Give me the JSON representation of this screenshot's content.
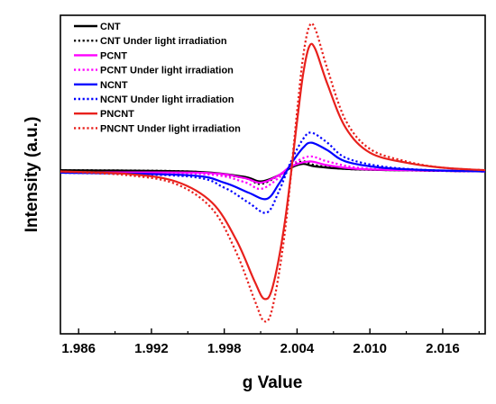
{
  "chart_data": {
    "type": "line",
    "title": "",
    "xlabel": "g Value",
    "ylabel": "Intensity (a.u.)",
    "xlim": [
      1.9845,
      2.0195
    ],
    "ylim": [
      -130,
      125
    ],
    "x_ticks": [
      1.986,
      1.992,
      1.998,
      2.004,
      2.01,
      2.016
    ],
    "x_tick_labels": [
      "1.986",
      "1.992",
      "1.998",
      "2.004",
      "2.010",
      "2.016"
    ],
    "y_ticks_shown": false,
    "grid": false,
    "legend_placement": "top-left",
    "series": [
      {
        "name": "CNT",
        "color": "#000000",
        "dash": "solid",
        "points": [
          [
            1.9845,
            1
          ],
          [
            1.995,
            0
          ],
          [
            1.9995,
            -4
          ],
          [
            2.001,
            -8
          ],
          [
            2.0025,
            -3
          ],
          [
            2.0035,
            3
          ],
          [
            2.0045,
            6
          ],
          [
            2.0055,
            4
          ],
          [
            2.008,
            2
          ],
          [
            2.012,
            1
          ],
          [
            2.0195,
            0
          ]
        ]
      },
      {
        "name": "CNT Under light irradiation",
        "color": "#000000",
        "dash": "dotted",
        "points": [
          [
            1.9845,
            1
          ],
          [
            1.995,
            0
          ],
          [
            1.9995,
            -5
          ],
          [
            2.001,
            -10
          ],
          [
            2.0025,
            -3
          ],
          [
            2.0035,
            4
          ],
          [
            2.0045,
            8
          ],
          [
            2.0055,
            5
          ],
          [
            2.008,
            2
          ],
          [
            2.012,
            1
          ],
          [
            2.0195,
            0
          ]
        ]
      },
      {
        "name": "PCNT",
        "color": "#ff00ff",
        "dash": "solid",
        "points": [
          [
            1.9845,
            -1
          ],
          [
            1.996,
            -1
          ],
          [
            1.9995,
            -5
          ],
          [
            2.001,
            -9
          ],
          [
            2.0025,
            -3
          ],
          [
            2.0035,
            4
          ],
          [
            2.005,
            8
          ],
          [
            2.0065,
            5
          ],
          [
            2.009,
            2
          ],
          [
            2.013,
            1
          ],
          [
            2.0195,
            0
          ]
        ]
      },
      {
        "name": "PCNT Under light irradiation",
        "color": "#ff00ff",
        "dash": "dotted",
        "points": [
          [
            1.9845,
            -1
          ],
          [
            1.996,
            -2
          ],
          [
            1.9995,
            -8
          ],
          [
            2.001,
            -14
          ],
          [
            2.0025,
            -5
          ],
          [
            2.0035,
            5
          ],
          [
            2.005,
            12
          ],
          [
            2.0065,
            8
          ],
          [
            2.009,
            3
          ],
          [
            2.013,
            1
          ],
          [
            2.0195,
            0
          ]
        ]
      },
      {
        "name": "NCNT",
        "color": "#0000ff",
        "dash": "solid",
        "points": [
          [
            1.9845,
            -1
          ],
          [
            1.995,
            -3
          ],
          [
            1.998,
            -9
          ],
          [
            2.0,
            -17
          ],
          [
            2.0015,
            -22
          ],
          [
            2.0025,
            -10
          ],
          [
            2.0035,
            6
          ],
          [
            2.0045,
            19
          ],
          [
            2.0052,
            23
          ],
          [
            2.0065,
            17
          ],
          [
            2.008,
            8
          ],
          [
            2.011,
            3
          ],
          [
            2.015,
            1
          ],
          [
            2.0195,
            0
          ]
        ]
      },
      {
        "name": "NCNT Under light irradiation",
        "color": "#0000ff",
        "dash": "dotted",
        "points": [
          [
            1.9845,
            -1
          ],
          [
            1.995,
            -4
          ],
          [
            1.998,
            -13
          ],
          [
            2.0,
            -25
          ],
          [
            2.0015,
            -33
          ],
          [
            2.0025,
            -16
          ],
          [
            2.0035,
            8
          ],
          [
            2.0045,
            26
          ],
          [
            2.0052,
            31
          ],
          [
            2.0065,
            23
          ],
          [
            2.008,
            11
          ],
          [
            2.011,
            4
          ],
          [
            2.015,
            1
          ],
          [
            2.0195,
            0
          ]
        ]
      },
      {
        "name": "PNCNT",
        "color": "#e8201c",
        "dash": "solid",
        "points": [
          [
            1.9845,
            0
          ],
          [
            1.99,
            -2
          ],
          [
            1.994,
            -8
          ],
          [
            1.997,
            -25
          ],
          [
            1.999,
            -55
          ],
          [
            2.0005,
            -88
          ],
          [
            2.0013,
            -102
          ],
          [
            2.002,
            -92
          ],
          [
            2.003,
            -40
          ],
          [
            2.004,
            40
          ],
          [
            2.0045,
            78
          ],
          [
            2.005,
            100
          ],
          [
            2.0055,
            98
          ],
          [
            2.0065,
            70
          ],
          [
            2.008,
            35
          ],
          [
            2.01,
            15
          ],
          [
            2.013,
            7
          ],
          [
            2.016,
            3
          ],
          [
            2.0195,
            1
          ]
        ]
      },
      {
        "name": "PNCNT Under light irradiation",
        "color": "#e8201c",
        "dash": "dotted",
        "points": [
          [
            1.9845,
            0
          ],
          [
            1.99,
            -3
          ],
          [
            1.994,
            -10
          ],
          [
            1.997,
            -30
          ],
          [
            1.999,
            -65
          ],
          [
            2.0005,
            -103
          ],
          [
            2.0013,
            -120
          ],
          [
            2.002,
            -108
          ],
          [
            2.003,
            -48
          ],
          [
            2.004,
            48
          ],
          [
            2.0045,
            92
          ],
          [
            2.005,
            116
          ],
          [
            2.0055,
            114
          ],
          [
            2.0065,
            82
          ],
          [
            2.008,
            41
          ],
          [
            2.01,
            18
          ],
          [
            2.013,
            8
          ],
          [
            2.016,
            3
          ],
          [
            2.0195,
            1
          ]
        ]
      }
    ]
  }
}
